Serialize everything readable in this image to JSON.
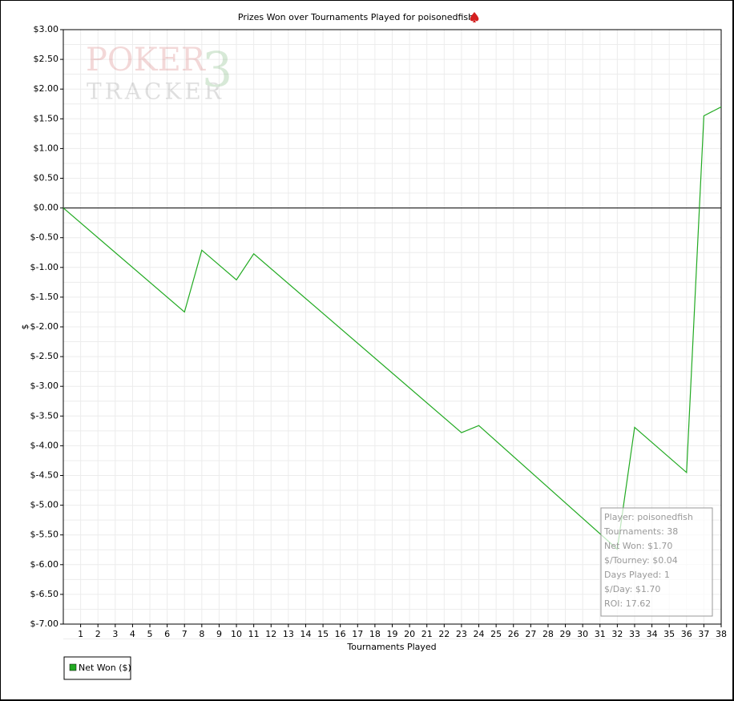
{
  "chart_data": {
    "type": "line",
    "title": "Prizes Won over Tournaments Played for poisonedfish",
    "x_label": "Tournaments Played",
    "y_label": "$",
    "watermark": [
      "POKER",
      "TRACKER",
      "3"
    ],
    "x": [
      0,
      7,
      8,
      10,
      11,
      23,
      24,
      32,
      33,
      36,
      37,
      38
    ],
    "series": [
      {
        "name": "Net Won ($)",
        "color": "#22aa22",
        "values": [
          0,
          -1.75,
          -0.71,
          -1.21,
          -0.77,
          -3.78,
          -3.66,
          -5.74,
          -3.69,
          -4.45,
          1.55,
          1.7
        ]
      }
    ],
    "xlim": [
      0,
      38
    ],
    "xticks": [
      1,
      2,
      3,
      4,
      5,
      6,
      7,
      8,
      9,
      10,
      11,
      12,
      13,
      14,
      15,
      16,
      17,
      18,
      19,
      20,
      21,
      22,
      23,
      24,
      25,
      26,
      27,
      28,
      29,
      30,
      31,
      32,
      33,
      34,
      35,
      36,
      37,
      38
    ],
    "ylim": [
      -7,
      3
    ],
    "yticks": [
      {
        "value": 3,
        "label": "$3.00"
      },
      {
        "value": 2.5,
        "label": "$2.50"
      },
      {
        "value": 2,
        "label": "$2.00"
      },
      {
        "value": 1.5,
        "label": "$1.50"
      },
      {
        "value": 1,
        "label": "$1.00"
      },
      {
        "value": 0.5,
        "label": "$0.50"
      },
      {
        "value": 0,
        "label": "$0.00"
      },
      {
        "value": -0.5,
        "label": "$-0.50"
      },
      {
        "value": -1,
        "label": "$-1.00"
      },
      {
        "value": -1.5,
        "label": "$-1.50"
      },
      {
        "value": -2,
        "label": "$-2.00"
      },
      {
        "value": -2.5,
        "label": "$-2.50"
      },
      {
        "value": -3,
        "label": "$-3.00"
      },
      {
        "value": -3.5,
        "label": "$-3.50"
      },
      {
        "value": -4,
        "label": "$-4.00"
      },
      {
        "value": -4.5,
        "label": "$-4.50"
      },
      {
        "value": -5,
        "label": "$-5.00"
      },
      {
        "value": -5.5,
        "label": "$-5.50"
      },
      {
        "value": -6,
        "label": "$-6.00"
      },
      {
        "value": -6.5,
        "label": "$-6.50"
      },
      {
        "value": -7,
        "label": "$-7.00"
      }
    ],
    "grid": true,
    "legend": "bottom-left",
    "info_box": [
      "Player: poisonedfish",
      "Tournaments: 38",
      "Net Won: $1.70",
      "$/Tourney: $0.04",
      "Days Played: 1",
      "$/Day: $1.70",
      "ROI: 17.62"
    ]
  }
}
